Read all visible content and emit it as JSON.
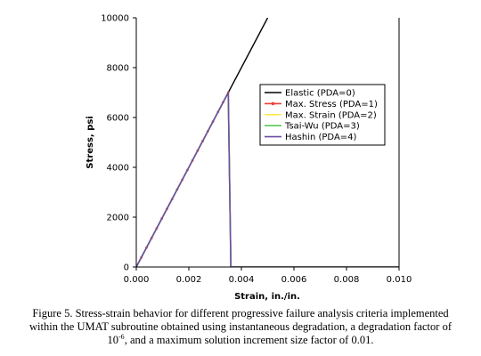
{
  "chart_data": {
    "type": "line",
    "xlabel": "Strain, in./in.",
    "ylabel": "Stress, psi",
    "xlim": [
      0,
      0.01
    ],
    "ylim": [
      0,
      10000
    ],
    "x_ticks": [
      "0.000",
      "0.002",
      "0.004",
      "0.006",
      "0.008",
      "0.010"
    ],
    "y_ticks": [
      "0",
      "2000",
      "4000",
      "6000",
      "8000",
      "10000"
    ],
    "grid": false,
    "legend_position": "right",
    "series": [
      {
        "name": "Elastic (PDA=0)",
        "color": "#000000",
        "x": [
          0.0,
          0.005
        ],
        "y": [
          0,
          10000
        ]
      },
      {
        "name": "Max. Stress (PDA=1)",
        "color": "#e8413a",
        "marker": "dot",
        "x": [
          0.0,
          0.0035,
          0.0036,
          0.01
        ],
        "y": [
          0,
          7000,
          0,
          0
        ]
      },
      {
        "name": "Max. Strain (PDA=2)",
        "color": "#ffe94d",
        "x": [
          0.0,
          0.0035,
          0.0036,
          0.01
        ],
        "y": [
          0,
          7000,
          0,
          0
        ]
      },
      {
        "name": "Tsai-Wu (PDA=3)",
        "color": "#5cc85c",
        "x": [
          0.0,
          0.0035,
          0.0036,
          0.01
        ],
        "y": [
          0,
          7000,
          0,
          0
        ]
      },
      {
        "name": "Hashin (PDA=4)",
        "color": "#6b4fa8",
        "x": [
          0.0,
          0.0035,
          0.0036,
          0.01
        ],
        "y": [
          0,
          7000,
          0,
          0
        ]
      }
    ]
  },
  "caption": {
    "line1": "Figure 5.  Stress-strain behavior for different progressive failure analysis criteria implemented",
    "line2": "within the UMAT subroutine obtained using instantaneous degradation, a degradation factor of",
    "line3_pre": "10",
    "line3_sup": "-6",
    "line3_post": ", and a maximum solution increment size factor of 0.01."
  }
}
